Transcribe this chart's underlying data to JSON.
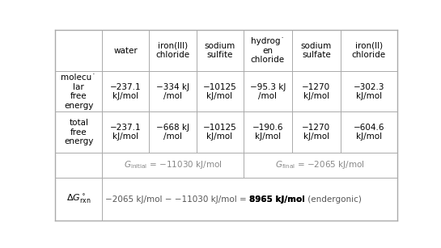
{
  "col_headers": [
    "water",
    "iron(III)\nchloride",
    "sodium\nsulfite",
    "hydrog˙\nen\nchloride",
    "sodium\nsulfate",
    "iron(II)\nchloride"
  ],
  "row0_label": "",
  "row1_label": "molecular·\nlar\nfree\nenergy",
  "row2_label": "total\nfree\nenergy",
  "row3_label": "",
  "row4_label": "ΔG°rxn_special",
  "molecular_free_energy": [
    "−237.1\nkJ/mol",
    "−334 kJ\n/mol",
    "−10125\nkJ/mol",
    "−95.3 kJ\n/mol",
    "−1270\nkJ/mol",
    "−302.3\nkJ/mol"
  ],
  "total_free_energy": [
    "−237.1\nkJ/mol",
    "−668 kJ\n/mol",
    "−10125\nkJ/mol",
    "−190.6\nkJ/mol",
    "−1270\nkJ/mol",
    "−604.6\nkJ/mol"
  ],
  "bg_color": "#ffffff",
  "line_color": "#aaaaaa",
  "text_color": "#000000",
  "fontsize": 7.5
}
